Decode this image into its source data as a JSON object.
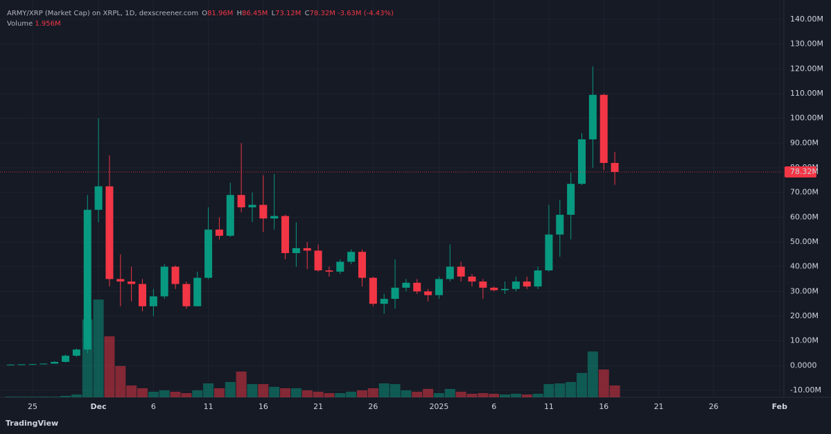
{
  "chart_data": {
    "type": "candlestick",
    "title": "ARMY/XRP (Market Cap) on XRPL, 1D, dexscreener.com",
    "ohlc_legend": [
      {
        "key": "O",
        "value": "81.96M"
      },
      {
        "key": "H",
        "value": "86.45M"
      },
      {
        "key": "L",
        "value": "73.12M"
      },
      {
        "key": "C",
        "value": "78.32M"
      }
    ],
    "change": "-3.63M (-4.43%)",
    "volume_label": "Volume",
    "volume_value": "1.956M",
    "last_price_label": "78.32M",
    "brand": "TradingView",
    "up_color": "#089981",
    "down_color": "#f23645",
    "categories": [
      null,
      null,
      "25",
      null,
      null,
      null,
      null,
      null,
      "Dec",
      null,
      null,
      null,
      null,
      "6",
      null,
      null,
      null,
      null,
      "11",
      null,
      null,
      null,
      null,
      "16",
      null,
      null,
      null,
      null,
      "21",
      null,
      null,
      null,
      null,
      "26",
      null,
      null,
      null,
      null,
      null,
      "2025",
      null,
      null,
      null,
      null,
      "6",
      null,
      null,
      null,
      null,
      "11",
      null,
      null,
      null,
      null,
      "16",
      null,
      null,
      null,
      null,
      "21",
      null,
      null,
      null,
      null,
      "26",
      null,
      null,
      null,
      null,
      null,
      "Feb"
    ],
    "open": [
      0.3,
      0.4,
      0.5,
      0.6,
      0.8,
      1.5,
      4,
      6.5,
      63,
      72.5,
      35,
      34,
      33,
      24,
      28,
      40,
      33,
      24,
      35.5,
      55,
      52.5,
      69,
      64,
      65,
      59.5,
      60.5,
      45.5,
      47.5,
      46.5,
      38.5,
      38,
      42,
      46,
      35.5,
      25,
      27,
      31.5,
      33.5,
      30,
      28.5,
      35,
      40,
      36,
      34,
      31.5,
      30.5,
      31,
      34,
      32,
      38.5,
      53,
      61,
      73.5,
      91.5,
      109.5,
      81.96,
      null,
      null,
      null,
      null,
      null,
      null,
      null,
      null,
      null,
      null,
      null,
      null,
      null,
      null,
      null
    ],
    "high": [
      0.5,
      0.6,
      0.7,
      0.9,
      1.8,
      4.5,
      7,
      69,
      100,
      85,
      45,
      40,
      35,
      31,
      41,
      40.5,
      34,
      38,
      64,
      60,
      74,
      90,
      70,
      77,
      77.5,
      61,
      58,
      50,
      49,
      40,
      43,
      47,
      47,
      36,
      29,
      43,
      35,
      35,
      31,
      36,
      49,
      42,
      37,
      35,
      32,
      34,
      36,
      36,
      40,
      65,
      67,
      78,
      94,
      121,
      110,
      86.45,
      null,
      null,
      null,
      null,
      null,
      null,
      null,
      null,
      null,
      null,
      null,
      null,
      null,
      null,
      null
    ],
    "low": [
      0.2,
      0.3,
      0.4,
      0.5,
      0.7,
      1.2,
      3.5,
      5,
      58,
      32,
      24,
      26,
      22,
      20,
      27,
      31,
      23,
      24,
      35,
      51,
      52,
      62,
      58,
      54,
      55,
      43,
      40,
      39,
      38,
      36,
      37,
      41,
      32,
      24,
      21,
      23,
      30,
      29,
      26,
      27,
      34,
      34,
      32,
      27,
      30,
      29,
      30,
      31,
      31,
      38,
      44,
      51,
      73,
      80,
      79,
      73.12,
      null,
      null,
      null,
      null,
      null,
      null,
      null,
      null,
      null,
      null,
      null,
      null,
      null,
      null,
      null
    ],
    "close": [
      0.4,
      0.5,
      0.6,
      0.8,
      1.5,
      4,
      6.5,
      63,
      72.5,
      35,
      34,
      33,
      24,
      28,
      40,
      33,
      24,
      35.5,
      55,
      52.5,
      69,
      64,
      65,
      59.5,
      60.5,
      45.5,
      47.5,
      46.5,
      38.5,
      38,
      42,
      46,
      35.5,
      25,
      27,
      31.5,
      33.5,
      30,
      28.5,
      35,
      40,
      36,
      34,
      31.5,
      30.5,
      31,
      34,
      32,
      38.5,
      53,
      61,
      73.5,
      91.5,
      109.5,
      81.96,
      78.32,
      null,
      null,
      null,
      null,
      null,
      null,
      null,
      null,
      null,
      null,
      null,
      null,
      null,
      null,
      null
    ],
    "volume": [
      0.1,
      0.1,
      0.1,
      0.1,
      0.1,
      0.23,
      0.46,
      12.9,
      16.2,
      10.1,
      5.18,
      1.96,
      1.5,
      0.92,
      1.15,
      0.92,
      0.69,
      1.15,
      2.3,
      1.5,
      2.53,
      4.26,
      2.19,
      2.19,
      1.73,
      1.5,
      1.5,
      1.15,
      0.92,
      0.69,
      0.69,
      0.92,
      1.15,
      1.5,
      2.3,
      2.19,
      1.15,
      0.92,
      1.38,
      0.69,
      1.38,
      0.92,
      0.58,
      0.69,
      0.58,
      0.46,
      0.58,
      0.46,
      0.58,
      2.19,
      2.3,
      2.53,
      4.03,
      7.59,
      4.6,
      1.956,
      null,
      null,
      null,
      null,
      null,
      null,
      null,
      null,
      null,
      null,
      null,
      null,
      null,
      null,
      null
    ],
    "ylim": [
      -10,
      140
    ],
    "yticks": [
      {
        "value": 140,
        "label": "140.00M"
      },
      {
        "value": 130,
        "label": "130.00M"
      },
      {
        "value": 120,
        "label": "120.00M"
      },
      {
        "value": 110,
        "label": "110.00M"
      },
      {
        "value": 100,
        "label": "100.00M"
      },
      {
        "value": 90,
        "label": "90.00M"
      },
      {
        "value": 80,
        "label": "80.00M"
      },
      {
        "value": 70,
        "label": "70.00M"
      },
      {
        "value": 60,
        "label": "60.00M"
      },
      {
        "value": 50,
        "label": "50.00M"
      },
      {
        "value": 40,
        "label": "40.00M"
      },
      {
        "value": 30,
        "label": "30.00M"
      },
      {
        "value": 20,
        "label": "20.00M"
      },
      {
        "value": 10,
        "label": "10.00M"
      },
      {
        "value": 0,
        "label": "0.0000"
      },
      {
        "value": -10,
        "label": "-10.00M"
      }
    ],
    "grid": true
  }
}
